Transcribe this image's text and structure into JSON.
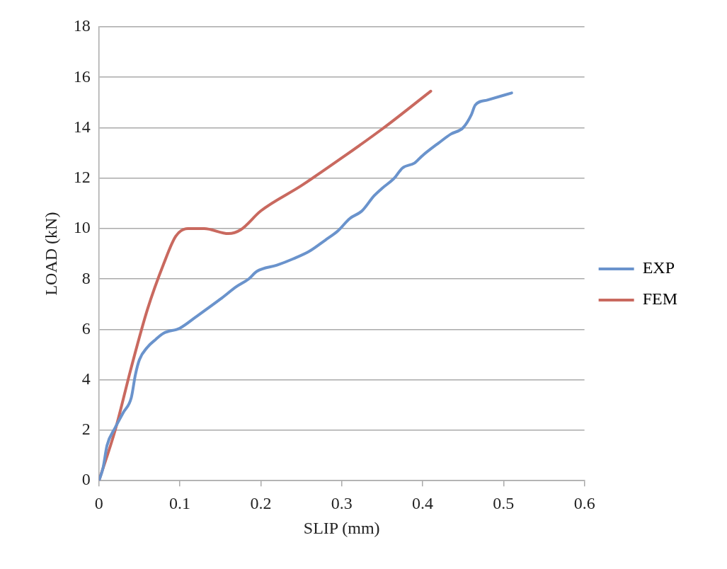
{
  "chart_data": {
    "type": "line",
    "xlabel": "SLIP (mm)",
    "ylabel": "LOAD (kN)",
    "xlim": [
      0,
      0.6
    ],
    "xticks": [
      0,
      0.1,
      0.2,
      0.3,
      0.4,
      0.5,
      0.6
    ],
    "ylim": [
      0,
      18
    ],
    "yticks": [
      0,
      2,
      4,
      6,
      8,
      10,
      12,
      14,
      16,
      18
    ],
    "grid": "y",
    "legend": "right",
    "marker": "none",
    "line_style": "solid",
    "series": [
      {
        "name": "EXP",
        "color": "#6a93cc",
        "x": [
          0,
          0.005,
          0.01,
          0.02,
          0.03,
          0.04,
          0.045,
          0.05,
          0.06,
          0.07,
          0.08,
          0.1,
          0.12,
          0.15,
          0.17,
          0.185,
          0.195,
          0.22,
          0.24,
          0.26,
          0.28,
          0.295,
          0.31,
          0.325,
          0.34,
          0.35,
          0.365,
          0.375,
          0.39,
          0.4,
          0.42,
          0.435,
          0.45,
          0.46,
          0.465,
          0.48,
          0.51
        ],
        "values": [
          0,
          0.5,
          1.4,
          2.1,
          2.7,
          3.3,
          4.2,
          4.8,
          5.3,
          5.6,
          5.85,
          6.05,
          6.5,
          7.2,
          7.7,
          8.0,
          8.3,
          8.55,
          8.8,
          9.1,
          9.55,
          9.9,
          10.4,
          10.7,
          11.3,
          11.6,
          12.0,
          12.4,
          12.6,
          12.9,
          13.4,
          13.75,
          14.0,
          14.5,
          14.9,
          15.1,
          15.38
        ]
      },
      {
        "name": "FEM",
        "color": "#c9695f",
        "x": [
          0,
          0.02,
          0.04,
          0.06,
          0.08,
          0.095,
          0.11,
          0.13,
          0.16,
          0.175,
          0.2,
          0.25,
          0.3,
          0.35,
          0.41
        ],
        "values": [
          0,
          2.0,
          4.5,
          6.8,
          8.6,
          9.7,
          10.0,
          10.0,
          9.8,
          9.95,
          10.7,
          11.7,
          12.8,
          13.95,
          15.45
        ]
      }
    ]
  }
}
